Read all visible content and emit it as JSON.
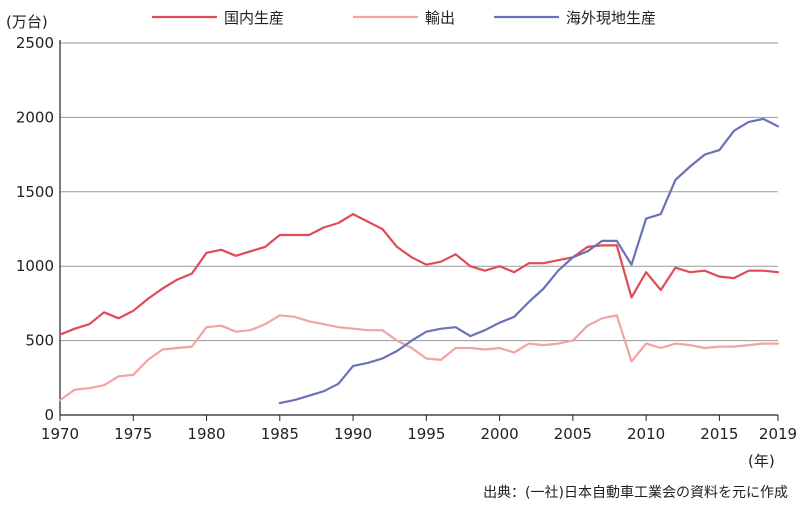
{
  "chart_data": {
    "type": "line",
    "y_unit": "(万台)",
    "x_unit": "(年)",
    "ylim": [
      0,
      2500
    ],
    "xlim": [
      1970,
      2019
    ],
    "grid": "horizontal",
    "legend_position": "top",
    "y_ticks": [
      0,
      500,
      1000,
      1500,
      2000,
      2500
    ],
    "x_ticks": [
      1970,
      1975,
      1980,
      1985,
      1990,
      1995,
      2000,
      2005,
      2010,
      2015,
      2019
    ],
    "series": [
      {
        "name": "国内生産",
        "color": "#e04b55",
        "points": [
          [
            1970,
            540
          ],
          [
            1971,
            580
          ],
          [
            1972,
            610
          ],
          [
            1973,
            690
          ],
          [
            1974,
            650
          ],
          [
            1975,
            700
          ],
          [
            1976,
            780
          ],
          [
            1977,
            850
          ],
          [
            1978,
            910
          ],
          [
            1979,
            950
          ],
          [
            1980,
            1090
          ],
          [
            1981,
            1110
          ],
          [
            1982,
            1070
          ],
          [
            1983,
            1100
          ],
          [
            1984,
            1130
          ],
          [
            1985,
            1210
          ],
          [
            1986,
            1210
          ],
          [
            1987,
            1210
          ],
          [
            1988,
            1260
          ],
          [
            1989,
            1290
          ],
          [
            1990,
            1350
          ],
          [
            1991,
            1300
          ],
          [
            1992,
            1250
          ],
          [
            1993,
            1130
          ],
          [
            1994,
            1060
          ],
          [
            1995,
            1010
          ],
          [
            1996,
            1030
          ],
          [
            1997,
            1080
          ],
          [
            1998,
            1000
          ],
          [
            1999,
            970
          ],
          [
            2000,
            1000
          ],
          [
            2001,
            960
          ],
          [
            2002,
            1020
          ],
          [
            2003,
            1020
          ],
          [
            2004,
            1040
          ],
          [
            2005,
            1060
          ],
          [
            2006,
            1130
          ],
          [
            2007,
            1140
          ],
          [
            2008,
            1140
          ],
          [
            2009,
            790
          ],
          [
            2010,
            960
          ],
          [
            2011,
            840
          ],
          [
            2012,
            990
          ],
          [
            2013,
            960
          ],
          [
            2014,
            970
          ],
          [
            2015,
            930
          ],
          [
            2016,
            920
          ],
          [
            2017,
            970
          ],
          [
            2018,
            970
          ],
          [
            2019,
            960
          ]
        ]
      },
      {
        "name": "輸出",
        "color": "#f2a3a3",
        "points": [
          [
            1970,
            100
          ],
          [
            1971,
            170
          ],
          [
            1972,
            180
          ],
          [
            1973,
            200
          ],
          [
            1974,
            260
          ],
          [
            1975,
            270
          ],
          [
            1976,
            370
          ],
          [
            1977,
            440
          ],
          [
            1978,
            450
          ],
          [
            1979,
            460
          ],
          [
            1980,
            590
          ],
          [
            1981,
            600
          ],
          [
            1982,
            560
          ],
          [
            1983,
            570
          ],
          [
            1984,
            610
          ],
          [
            1985,
            670
          ],
          [
            1986,
            660
          ],
          [
            1987,
            630
          ],
          [
            1988,
            610
          ],
          [
            1989,
            590
          ],
          [
            1990,
            580
          ],
          [
            1991,
            570
          ],
          [
            1992,
            570
          ],
          [
            1993,
            500
          ],
          [
            1994,
            450
          ],
          [
            1995,
            380
          ],
          [
            1996,
            370
          ],
          [
            1997,
            450
          ],
          [
            1998,
            450
          ],
          [
            1999,
            440
          ],
          [
            2000,
            450
          ],
          [
            2001,
            420
          ],
          [
            2002,
            480
          ],
          [
            2003,
            470
          ],
          [
            2004,
            480
          ],
          [
            2005,
            500
          ],
          [
            2006,
            600
          ],
          [
            2007,
            650
          ],
          [
            2008,
            670
          ],
          [
            2009,
            360
          ],
          [
            2010,
            480
          ],
          [
            2011,
            450
          ],
          [
            2012,
            480
          ],
          [
            2013,
            470
          ],
          [
            2014,
            450
          ],
          [
            2015,
            460
          ],
          [
            2016,
            460
          ],
          [
            2017,
            470
          ],
          [
            2018,
            480
          ],
          [
            2019,
            480
          ]
        ]
      },
      {
        "name": "海外現地生産",
        "color": "#6a72b6",
        "points": [
          [
            1985,
            80
          ],
          [
            1986,
            100
          ],
          [
            1987,
            130
          ],
          [
            1988,
            160
          ],
          [
            1989,
            210
          ],
          [
            1990,
            330
          ],
          [
            1991,
            350
          ],
          [
            1992,
            380
          ],
          [
            1993,
            430
          ],
          [
            1994,
            500
          ],
          [
            1995,
            560
          ],
          [
            1996,
            580
          ],
          [
            1997,
            590
          ],
          [
            1998,
            530
          ],
          [
            1999,
            570
          ],
          [
            2000,
            620
          ],
          [
            2001,
            660
          ],
          [
            2002,
            760
          ],
          [
            2003,
            850
          ],
          [
            2004,
            970
          ],
          [
            2005,
            1060
          ],
          [
            2006,
            1100
          ],
          [
            2007,
            1170
          ],
          [
            2008,
            1170
          ],
          [
            2009,
            1010
          ],
          [
            2010,
            1320
          ],
          [
            2011,
            1350
          ],
          [
            2012,
            1580
          ],
          [
            2013,
            1670
          ],
          [
            2014,
            1750
          ],
          [
            2015,
            1780
          ],
          [
            2016,
            1910
          ],
          [
            2017,
            1970
          ],
          [
            2018,
            1990
          ],
          [
            2019,
            1940
          ]
        ]
      }
    ]
  },
  "source": "出典：(一社)日本自動車工業会の資料を元に作成"
}
